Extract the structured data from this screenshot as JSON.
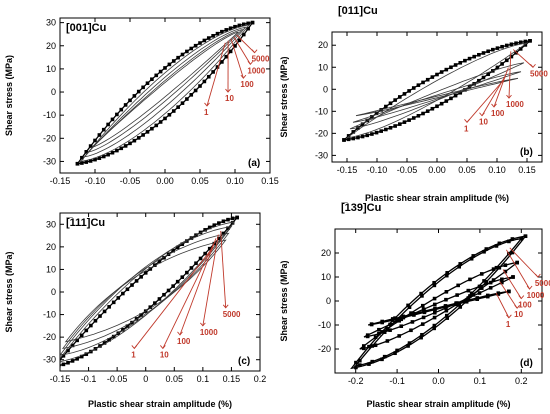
{
  "figure": {
    "annotation_color": "#c0392b",
    "marker_color": "#000000",
    "line_color": "#3a3a3a"
  },
  "chart_data": [
    {
      "type": "line",
      "panel": "(a)",
      "title": "[001]Cu",
      "xlabel": "",
      "ylabel": "Shear stress (MPa)",
      "xlim": [
        -0.15,
        0.15
      ],
      "ylim": [
        -35,
        32
      ],
      "xticks": [
        "-0.15",
        "-0.10",
        "-0.05",
        "0.00",
        "0.05",
        "0.10",
        "0.15"
      ],
      "yticks": [
        "30",
        "20",
        "10",
        "0",
        "-10",
        "-20",
        "-30"
      ],
      "xtick_values": [
        -0.15,
        -0.1,
        -0.05,
        0.0,
        0.05,
        0.1,
        0.15
      ],
      "ytick_values": [
        30,
        20,
        10,
        0,
        -10,
        -20,
        -30
      ],
      "annotations": [
        "5000",
        "1000",
        "100",
        "10",
        "1"
      ],
      "series": [
        {
          "amp": 0.125,
          "s_min": -31,
          "s_max": 30,
          "w": 0.9,
          "markers": true
        },
        {
          "amp": 0.12,
          "s_min": -30,
          "s_max": 29,
          "w": 0.7,
          "markers": false
        },
        {
          "amp": 0.115,
          "s_min": -28,
          "s_max": 28,
          "w": 0.5,
          "markers": false
        },
        {
          "amp": 0.11,
          "s_min": -26,
          "s_max": 27,
          "w": 0.35,
          "markers": false
        },
        {
          "amp": 0.105,
          "s_min": -24,
          "s_max": 26,
          "w": 0.25,
          "markers": false
        }
      ]
    },
    {
      "type": "line",
      "panel": "(b)",
      "title": "[011]Cu",
      "xlabel": "Plastic shear strain amplitude (%)",
      "ylabel": "Shear stress (MPa)",
      "xlim": [
        -0.175,
        0.175
      ],
      "ylim": [
        -33,
        26
      ],
      "xticks": [
        "-0.15",
        "-0.10",
        "-0.05",
        "0.00",
        "0.05",
        "0.10",
        "0.15"
      ],
      "yticks": [
        "20",
        "10",
        "0",
        "-10",
        "-20",
        "-30"
      ],
      "xtick_values": [
        -0.15,
        -0.1,
        -0.05,
        0.0,
        0.05,
        0.1,
        0.15
      ],
      "ytick_values": [
        20,
        10,
        0,
        -10,
        -20,
        -30
      ],
      "annotations": [
        "5000",
        "1000",
        "100",
        "10",
        "1"
      ],
      "series": [
        {
          "amp": 0.155,
          "s_min": -23,
          "s_max": 22,
          "w": 0.9,
          "markers": true
        },
        {
          "amp": 0.15,
          "s_min": -22,
          "s_max": 21,
          "w": 0.5,
          "markers": false
        },
        {
          "amp": 0.145,
          "s_min": -18,
          "s_max": 12,
          "w": 0.35,
          "markers": false
        },
        {
          "amp": 0.14,
          "s_min": -15,
          "s_max": 8,
          "w": 0.25,
          "markers": false
        },
        {
          "amp": 0.135,
          "s_min": -12,
          "s_max": 5,
          "w": 0.18,
          "markers": false
        }
      ]
    },
    {
      "type": "line",
      "panel": "(c)",
      "title": "[̅111]Cu",
      "xlabel": "Plastic shear strain amplitude (%)",
      "ylabel": "Shear stress (MPa)",
      "xlim": [
        -0.15,
        0.2
      ],
      "ylim": [
        -35,
        35
      ],
      "xticks": [
        "-0.15",
        "-0.1",
        "-0.05",
        "0",
        "0.05",
        "0.1",
        "0.15",
        "0.2"
      ],
      "yticks": [
        "30",
        "20",
        "10",
        "0",
        "-10",
        "-20",
        "-30"
      ],
      "xtick_values": [
        -0.15,
        -0.1,
        -0.05,
        0.0,
        0.05,
        0.1,
        0.15,
        0.2
      ],
      "ytick_values": [
        30,
        20,
        10,
        0,
        -10,
        -20,
        -30
      ],
      "annotations": [
        "5000",
        "1000",
        "100",
        "10",
        "1"
      ],
      "series": [
        {
          "amp": 0.16,
          "s_min": -33,
          "s_max": 33,
          "w": 0.55,
          "markers": true
        },
        {
          "amp": 0.155,
          "s_min": -31,
          "s_max": 31,
          "w": 0.8,
          "markers": false
        },
        {
          "amp": 0.15,
          "s_min": -28,
          "s_max": 29,
          "w": 1.0,
          "markers": false
        },
        {
          "amp": 0.145,
          "s_min": -25,
          "s_max": 26,
          "w": 1.2,
          "markers": false
        },
        {
          "amp": 0.14,
          "s_min": -22,
          "s_max": 23,
          "w": 1.4,
          "markers": false
        }
      ]
    },
    {
      "type": "line",
      "panel": "(d)",
      "title": "[̅139]Cu",
      "xlabel": "Plastic shear strain amplitude (%)",
      "ylabel": "Shear stress (MPa)",
      "xlim": [
        -0.25,
        0.25
      ],
      "ylim": [
        -30,
        30
      ],
      "xticks": [
        "-0.2",
        "-0.1",
        "0.0",
        "0.1",
        "0.2"
      ],
      "yticks": [
        "20",
        "10",
        "0",
        "-10",
        "-20"
      ],
      "xtick_values": [
        -0.2,
        -0.1,
        0.0,
        0.1,
        0.2
      ],
      "ytick_values": [
        20,
        10,
        0,
        -10,
        -20
      ],
      "annotations": [
        "5000",
        "1000",
        "100",
        "10",
        "1"
      ],
      "series": [
        {
          "amp": 0.21,
          "s_min": -28,
          "s_max": 27,
          "w": 0.9,
          "markers": true
        },
        {
          "amp": 0.2,
          "s_min": -27,
          "s_max": 26,
          "w": 0.8,
          "markers": true
        },
        {
          "amp": 0.19,
          "s_min": -20,
          "s_max": 16,
          "w": 0.6,
          "markers": true
        },
        {
          "amp": 0.18,
          "s_min": -15,
          "s_max": 10,
          "w": 0.45,
          "markers": true
        },
        {
          "amp": 0.17,
          "s_min": -10,
          "s_max": 4,
          "w": 0.3,
          "markers": true
        }
      ]
    }
  ]
}
